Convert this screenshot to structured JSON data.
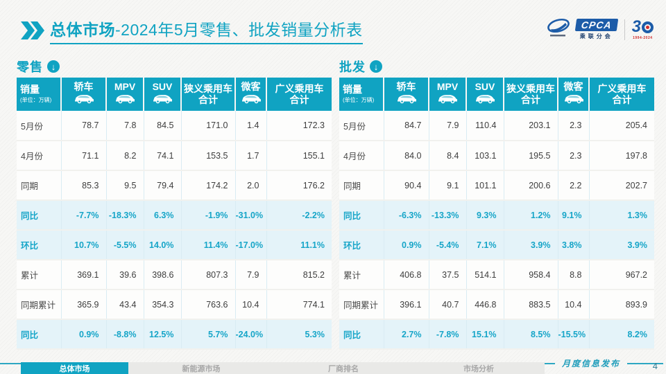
{
  "header": {
    "title_strong": "总体市场",
    "title_rest": "-2024年5月零售、批发销量分析表"
  },
  "logo": {
    "acronym": "CPCA",
    "org_cn": "乘联分会",
    "anniv_left": "3",
    "anniv_years": "1994-2024"
  },
  "watermark": {
    "text": "CPCA"
  },
  "chart_data": [
    {
      "type": "table",
      "title": "零售",
      "unit": "(单位：万辆)",
      "columns": [
        "销量",
        "轿车",
        "MPV",
        "SUV",
        "狭义乘用车\n合计",
        "微客",
        "广义乘用车\n合计"
      ],
      "column_icons": [
        null,
        "sedan-icon",
        "mpv-icon",
        "suv-icon",
        null,
        "microvan-icon",
        null
      ],
      "rows": [
        {
          "label": "5月份",
          "kind": "value",
          "values": [
            "78.7",
            "7.8",
            "84.5",
            "171.0",
            "1.4",
            "172.3"
          ]
        },
        {
          "label": "4月份",
          "kind": "value",
          "values": [
            "71.1",
            "8.2",
            "74.1",
            "153.5",
            "1.7",
            "155.1"
          ]
        },
        {
          "label": "同期",
          "kind": "value",
          "values": [
            "85.3",
            "9.5",
            "79.4",
            "174.2",
            "2.0",
            "176.2"
          ]
        },
        {
          "label": "同比",
          "kind": "percent",
          "values": [
            "-7.7%",
            "-18.3%",
            "6.3%",
            "-1.9%",
            "-31.0%",
            "-2.2%"
          ]
        },
        {
          "label": "环比",
          "kind": "percent",
          "values": [
            "10.7%",
            "-5.5%",
            "14.0%",
            "11.4%",
            "-17.0%",
            "11.1%"
          ]
        },
        {
          "label": "累计",
          "kind": "value",
          "values": [
            "369.1",
            "39.6",
            "398.6",
            "807.3",
            "7.9",
            "815.2"
          ]
        },
        {
          "label": "同期累计",
          "kind": "value",
          "values": [
            "365.9",
            "43.4",
            "354.3",
            "763.6",
            "10.4",
            "774.1"
          ]
        },
        {
          "label": "同比",
          "kind": "percent",
          "values": [
            "0.9%",
            "-8.8%",
            "12.5%",
            "5.7%",
            "-24.0%",
            "5.3%"
          ]
        }
      ]
    },
    {
      "type": "table",
      "title": "批发",
      "unit": "(单位：万辆)",
      "columns": [
        "销量",
        "轿车",
        "MPV",
        "SUV",
        "狭义乘用车\n合计",
        "微客",
        "广义乘用车\n合计"
      ],
      "column_icons": [
        null,
        "sedan-icon",
        "mpv-icon",
        "suv-icon",
        null,
        "microvan-icon",
        null
      ],
      "rows": [
        {
          "label": "5月份",
          "kind": "value",
          "values": [
            "84.7",
            "7.9",
            "110.4",
            "203.1",
            "2.3",
            "205.4"
          ]
        },
        {
          "label": "4月份",
          "kind": "value",
          "values": [
            "84.0",
            "8.4",
            "103.1",
            "195.5",
            "2.3",
            "197.8"
          ]
        },
        {
          "label": "同期",
          "kind": "value",
          "values": [
            "90.4",
            "9.1",
            "101.1",
            "200.6",
            "2.2",
            "202.7"
          ]
        },
        {
          "label": "同比",
          "kind": "percent",
          "values": [
            "-6.3%",
            "-13.3%",
            "9.3%",
            "1.2%",
            "9.1%",
            "1.3%"
          ]
        },
        {
          "label": "环比",
          "kind": "percent",
          "values": [
            "0.9%",
            "-5.4%",
            "7.1%",
            "3.9%",
            "3.8%",
            "3.9%"
          ]
        },
        {
          "label": "累计",
          "kind": "value",
          "values": [
            "406.8",
            "37.5",
            "514.1",
            "958.4",
            "8.8",
            "967.2"
          ]
        },
        {
          "label": "同期累计",
          "kind": "value",
          "values": [
            "396.1",
            "40.7",
            "446.8",
            "883.5",
            "10.4",
            "893.9"
          ]
        },
        {
          "label": "同比",
          "kind": "percent",
          "values": [
            "2.7%",
            "-7.8%",
            "15.1%",
            "8.5%",
            "-15.5%",
            "8.2%"
          ]
        }
      ]
    }
  ],
  "footer": {
    "tabs": [
      {
        "label": "总体市场",
        "active": true
      },
      {
        "label": "新能源市场",
        "active": false
      },
      {
        "label": "厂商排名",
        "active": false
      },
      {
        "label": "市场分析",
        "active": false
      }
    ],
    "release_label": "月度信息发布",
    "page_number": "4"
  },
  "colors": {
    "accent_teal": "#10a3c2",
    "percent_row_bg": "#e4f3f9",
    "percent_text": "#16a5c8",
    "logo_blue": "#1d5ca8",
    "logo_red": "#d22d2d"
  }
}
